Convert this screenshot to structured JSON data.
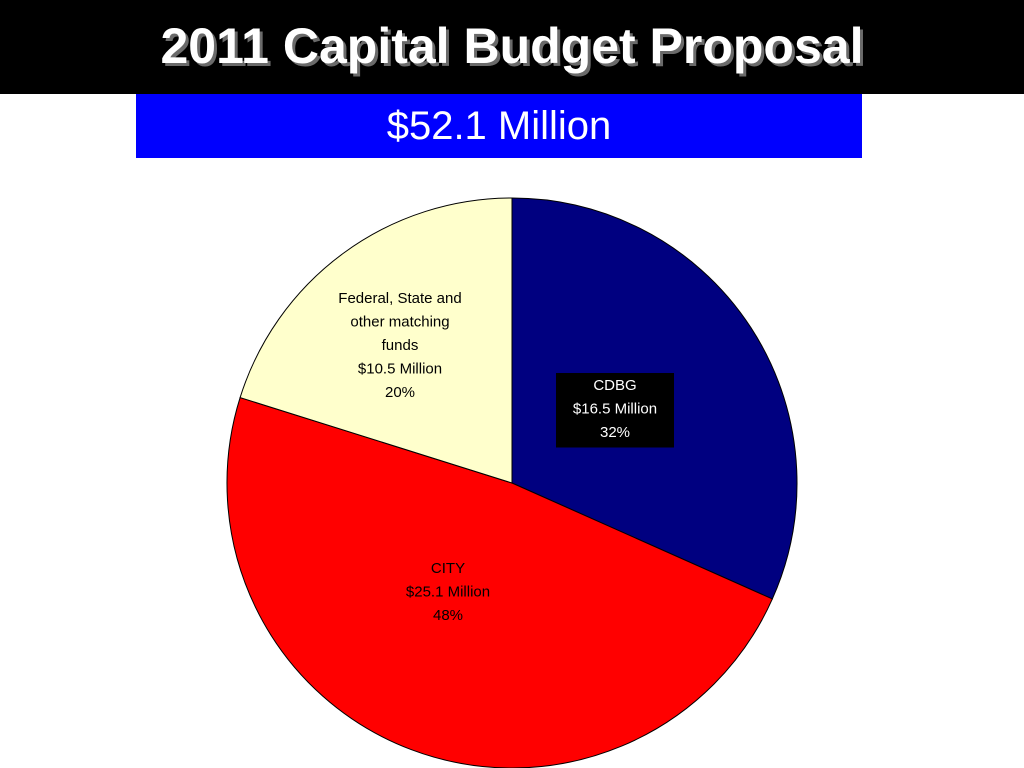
{
  "header": {
    "title": "2011 Capital Budget Proposal",
    "subtitle": "$52.1 Million"
  },
  "colors": {
    "title_bar": "#000000",
    "subtitle_bar": "#0000ff"
  },
  "chart_data": {
    "type": "pie",
    "title": "",
    "slices": [
      {
        "label_lines": [
          "CDBG",
          "$16.5 Million",
          "32%"
        ],
        "value": 16.5,
        "percent": 32,
        "color": "#000080",
        "label_color": "#ffffff",
        "label_background": "#000000"
      },
      {
        "label_lines": [
          "CITY",
          "$25.1 Million",
          "48%"
        ],
        "value": 25.1,
        "percent": 48,
        "color": "#ff0000",
        "label_color": "#000000",
        "label_background": ""
      },
      {
        "label_lines": [
          "Federal, State and",
          "other matching",
          "funds",
          "$10.5 Million",
          "20%"
        ],
        "value": 10.5,
        "percent": 20,
        "color": "#ffffcc",
        "label_color": "#000000",
        "label_background": ""
      }
    ],
    "start": "12 o'clock",
    "direction": "clockwise"
  }
}
